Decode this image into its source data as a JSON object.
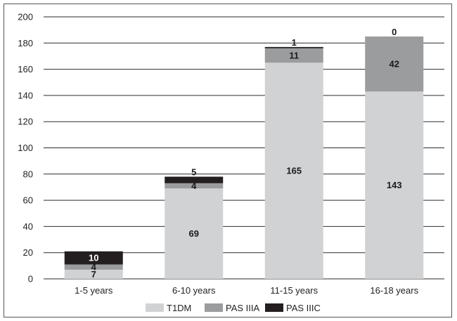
{
  "chart_data": {
    "type": "bar",
    "stacked": true,
    "categories": [
      "1-5 years",
      "6-10 years",
      "11-15 years",
      "16-18 years"
    ],
    "series": [
      {
        "name": "T1DM",
        "color": "#d1d2d4",
        "values": [
          7,
          69,
          165,
          143
        ]
      },
      {
        "name": "PAS IIIA",
        "color": "#9b9c9e",
        "values": [
          4,
          4,
          11,
          42
        ]
      },
      {
        "name": "PAS IIIC",
        "color": "#231f20",
        "values": [
          10,
          5,
          1,
          0
        ]
      }
    ],
    "ylim": [
      0,
      200
    ],
    "yticks": [
      "0",
      "20",
      "40",
      "60",
      "80",
      "100",
      "120",
      "140",
      "160",
      "180",
      "200"
    ],
    "grid": true,
    "legend_position": "bottom"
  }
}
